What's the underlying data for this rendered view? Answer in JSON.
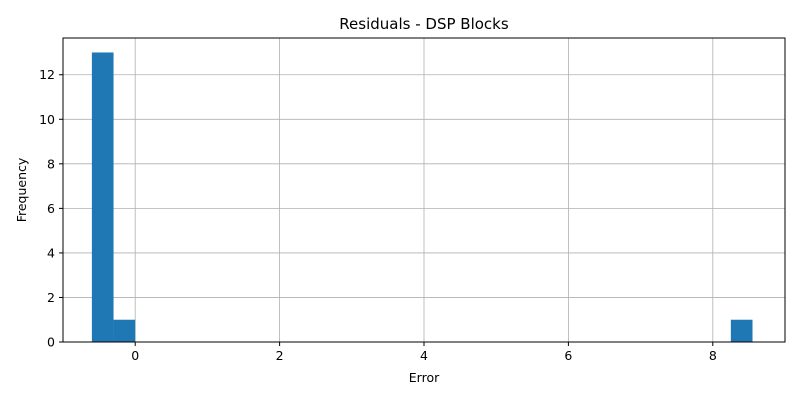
{
  "chart_data": {
    "type": "bar",
    "title": "Residuals - DSP Blocks",
    "xlabel": "Error",
    "ylabel": "Frequency",
    "xlim": [
      -1.0,
      9.0
    ],
    "ylim": [
      0,
      13.65
    ],
    "xticks": [
      0,
      2,
      4,
      6,
      8
    ],
    "yticks": [
      0,
      2,
      4,
      6,
      8,
      10,
      12
    ],
    "grid": true,
    "bar_color": "#1f77b4",
    "bins": [
      {
        "x0": -0.6,
        "x1": -0.3,
        "count": 13
      },
      {
        "x0": -0.3,
        "x1": 0.0,
        "count": 1
      },
      {
        "x0": 8.25,
        "x1": 8.55,
        "count": 1
      }
    ]
  }
}
